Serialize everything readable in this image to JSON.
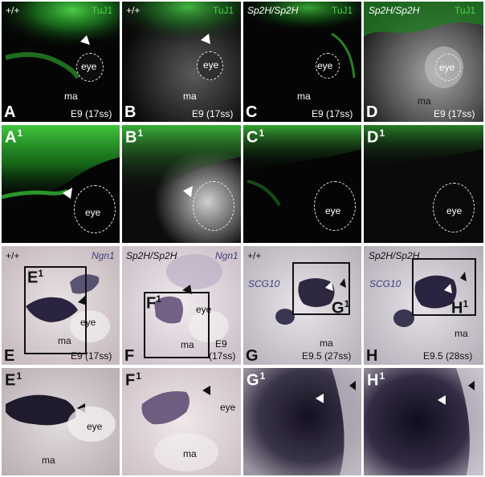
{
  "row1": {
    "panels": [
      {
        "letter": "A",
        "genotype": "+/+",
        "marker": "TuJ1",
        "stage": "E9 (17ss)",
        "eye": "eye",
        "ma": "ma"
      },
      {
        "letter": "B",
        "genotype": "+/+",
        "marker": "TuJ1",
        "stage": "E9 (17ss)",
        "eye": "eye",
        "ma": "ma"
      },
      {
        "letter": "C",
        "genotype": "Sp2H/Sp2H",
        "marker": "TuJ1",
        "stage": "E9 (17ss)",
        "eye": "eye",
        "ma": "ma"
      },
      {
        "letter": "D",
        "genotype": "Sp2H/Sp2H",
        "marker": "TuJ1",
        "stage": "E9 (17ss)",
        "eye": "eye",
        "ma": "ma"
      }
    ]
  },
  "row2": {
    "panels": [
      {
        "letter": "A",
        "sup": "1",
        "eye": "eye"
      },
      {
        "letter": "B",
        "sup": "1",
        "eye": "eye"
      },
      {
        "letter": "C",
        "sup": "1",
        "eye": "eye"
      },
      {
        "letter": "D",
        "sup": "1",
        "eye": "eye"
      }
    ]
  },
  "row3": {
    "panels": [
      {
        "letter": "E",
        "genotype": "+/+",
        "marker": "Ngn1",
        "stage": "E9 (17ss)",
        "eye": "eye",
        "ma": "ma",
        "box_label": "E",
        "box_sup": "1"
      },
      {
        "letter": "F",
        "genotype": "Sp2H/Sp2H",
        "marker": "Ngn1",
        "stage_line1": "E9",
        "stage_line2": "(17ss)",
        "eye": "eye",
        "ma": "ma",
        "box_label": "F",
        "box_sup": "1"
      },
      {
        "letter": "G",
        "genotype": "+/+",
        "marker": "SCG10",
        "stage": "E9.5 (27ss)",
        "ma": "ma",
        "box_label": "G",
        "box_sup": "1"
      },
      {
        "letter": "H",
        "genotype": "Sp2H/Sp2H",
        "marker": "SCG10",
        "stage": "E9.5 (28ss)",
        "ma": "ma",
        "box_label": "H",
        "box_sup": "1"
      }
    ]
  },
  "row4": {
    "panels": [
      {
        "letter": "E",
        "sup": "1",
        "eye": "eye",
        "ma": "ma"
      },
      {
        "letter": "F",
        "sup": "1",
        "eye": "eye",
        "ma": "ma"
      },
      {
        "letter": "G",
        "sup": "1"
      },
      {
        "letter": "H",
        "sup": "1"
      }
    ]
  },
  "colors": {
    "fluorescence": "#39c23a",
    "ish_stain": "#2a2440",
    "tissue_pink": "#e9d9dc",
    "background_dark": "#0a0a0a"
  }
}
